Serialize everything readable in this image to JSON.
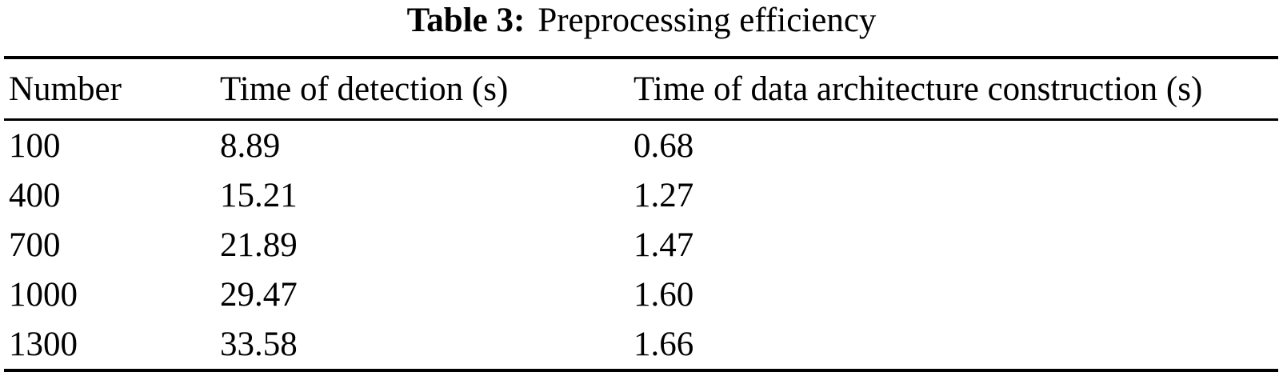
{
  "caption": {
    "label": "Table 3:",
    "title": "Preprocessing efficiency"
  },
  "table": {
    "columns": [
      "Number",
      "Time of detection (s)",
      "Time of data architecture construction (s)"
    ],
    "rows": [
      [
        "100",
        "8.89",
        "0.68"
      ],
      [
        "400",
        "15.21",
        "1.27"
      ],
      [
        "700",
        "21.89",
        "1.47"
      ],
      [
        "1000",
        "29.47",
        "1.60"
      ],
      [
        "1300",
        "33.58",
        "1.66"
      ]
    ]
  },
  "colors": {
    "text": "#000000",
    "background": "#ffffff",
    "rule": "#000000"
  },
  "chart_data": {
    "type": "table",
    "title": "Table 3: Preprocessing efficiency",
    "columns": [
      "Number",
      "Time of detection (s)",
      "Time of data architecture construction (s)"
    ],
    "rows": [
      [
        100,
        8.89,
        0.68
      ],
      [
        400,
        15.21,
        1.27
      ],
      [
        700,
        21.89,
        1.47
      ],
      [
        1000,
        29.47,
        1.6
      ],
      [
        1300,
        33.58,
        1.66
      ]
    ]
  }
}
